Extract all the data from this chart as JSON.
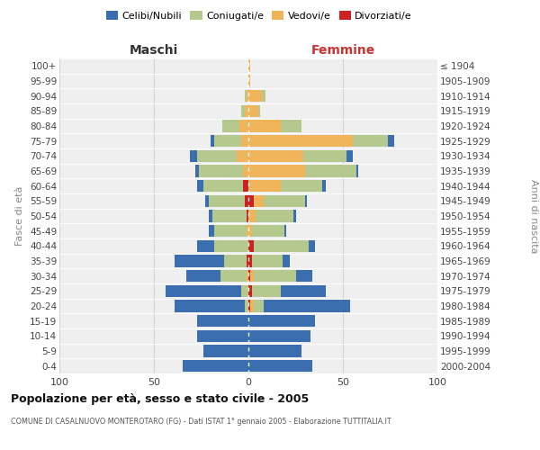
{
  "age_groups": [
    "0-4",
    "5-9",
    "10-14",
    "15-19",
    "20-24",
    "25-29",
    "30-34",
    "35-39",
    "40-44",
    "45-49",
    "50-54",
    "55-59",
    "60-64",
    "65-69",
    "70-74",
    "75-79",
    "80-84",
    "85-89",
    "90-94",
    "95-99",
    "100+"
  ],
  "birth_years": [
    "2000-2004",
    "1995-1999",
    "1990-1994",
    "1985-1989",
    "1980-1984",
    "1975-1979",
    "1970-1974",
    "1965-1969",
    "1960-1964",
    "1955-1959",
    "1950-1954",
    "1945-1949",
    "1940-1944",
    "1935-1939",
    "1930-1934",
    "1925-1929",
    "1920-1924",
    "1915-1919",
    "1910-1914",
    "1905-1909",
    "≤ 1904"
  ],
  "colors": {
    "celibi": "#3a6eae",
    "coniugati": "#b5c98e",
    "vedovi": "#f0b45a",
    "divorziati": "#cc2222"
  },
  "male": {
    "celibi": [
      35,
      24,
      27,
      27,
      37,
      40,
      18,
      26,
      9,
      3,
      2,
      2,
      3,
      2,
      4,
      2,
      0,
      0,
      0,
      0,
      0
    ],
    "coniugati": [
      0,
      0,
      0,
      0,
      2,
      4,
      14,
      12,
      18,
      17,
      18,
      19,
      21,
      23,
      21,
      14,
      9,
      2,
      1,
      0,
      0
    ],
    "vedovi": [
      0,
      0,
      0,
      0,
      0,
      0,
      1,
      0,
      0,
      1,
      0,
      0,
      0,
      3,
      6,
      4,
      5,
      2,
      1,
      0,
      0
    ],
    "divorziati": [
      0,
      0,
      0,
      0,
      0,
      0,
      0,
      1,
      0,
      0,
      1,
      2,
      3,
      0,
      0,
      0,
      0,
      0,
      0,
      0,
      0
    ]
  },
  "female": {
    "celibi": [
      34,
      28,
      33,
      35,
      46,
      24,
      9,
      4,
      3,
      1,
      1,
      1,
      2,
      1,
      3,
      3,
      0,
      0,
      0,
      0,
      0
    ],
    "coniugati": [
      0,
      0,
      0,
      0,
      5,
      15,
      22,
      16,
      29,
      17,
      20,
      22,
      22,
      27,
      23,
      19,
      11,
      1,
      2,
      0,
      0
    ],
    "vedovi": [
      0,
      0,
      0,
      0,
      2,
      0,
      2,
      0,
      0,
      2,
      4,
      5,
      17,
      30,
      29,
      55,
      17,
      5,
      7,
      1,
      1
    ],
    "divorziati": [
      0,
      0,
      0,
      0,
      1,
      2,
      1,
      2,
      3,
      0,
      0,
      3,
      0,
      0,
      0,
      0,
      0,
      0,
      0,
      0,
      0
    ]
  },
  "title": "Popolazione per età, sesso e stato civile - 2005",
  "subtitle": "COMUNE DI CASALNUOVO MONTEROTARO (FG) - Dati ISTAT 1° gennaio 2005 - Elaborazione TUTTITALIA.IT",
  "label_maschi": "Maschi",
  "label_femmine": "Femmine",
  "ylabel_left": "Fasce di età",
  "ylabel_right": "Anni di nascita",
  "xlim": 100,
  "legend_labels": [
    "Celibi/Nubili",
    "Coniugati/e",
    "Vedovi/e",
    "Divorziati/e"
  ],
  "bg_color": "#efefef",
  "grid_color": "#cccccc",
  "maschi_color": "#333333",
  "femmine_color": "#cc3333"
}
